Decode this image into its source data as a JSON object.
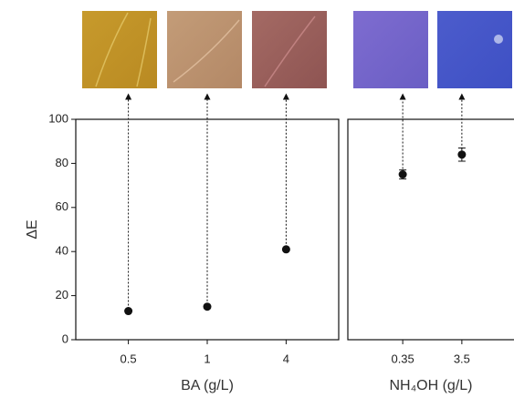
{
  "chart_data": [
    {
      "type": "scatter",
      "y_label": "ΔE",
      "x_label": "BA (g/L)",
      "categories": [
        "0.5",
        "1",
        "4"
      ],
      "values": [
        13,
        15,
        41
      ],
      "color": "#111111",
      "ylim": [
        0,
        100
      ],
      "yticks": [
        0,
        20,
        40,
        60,
        80,
        100
      ]
    },
    {
      "type": "scatter",
      "x_label": "NH₄OH (g/L)",
      "categories": [
        "0.35",
        "3.5"
      ],
      "values": [
        75,
        84
      ],
      "errors": [
        2,
        3
      ],
      "color": "#111111",
      "ylim": [
        0,
        100
      ]
    }
  ]
}
